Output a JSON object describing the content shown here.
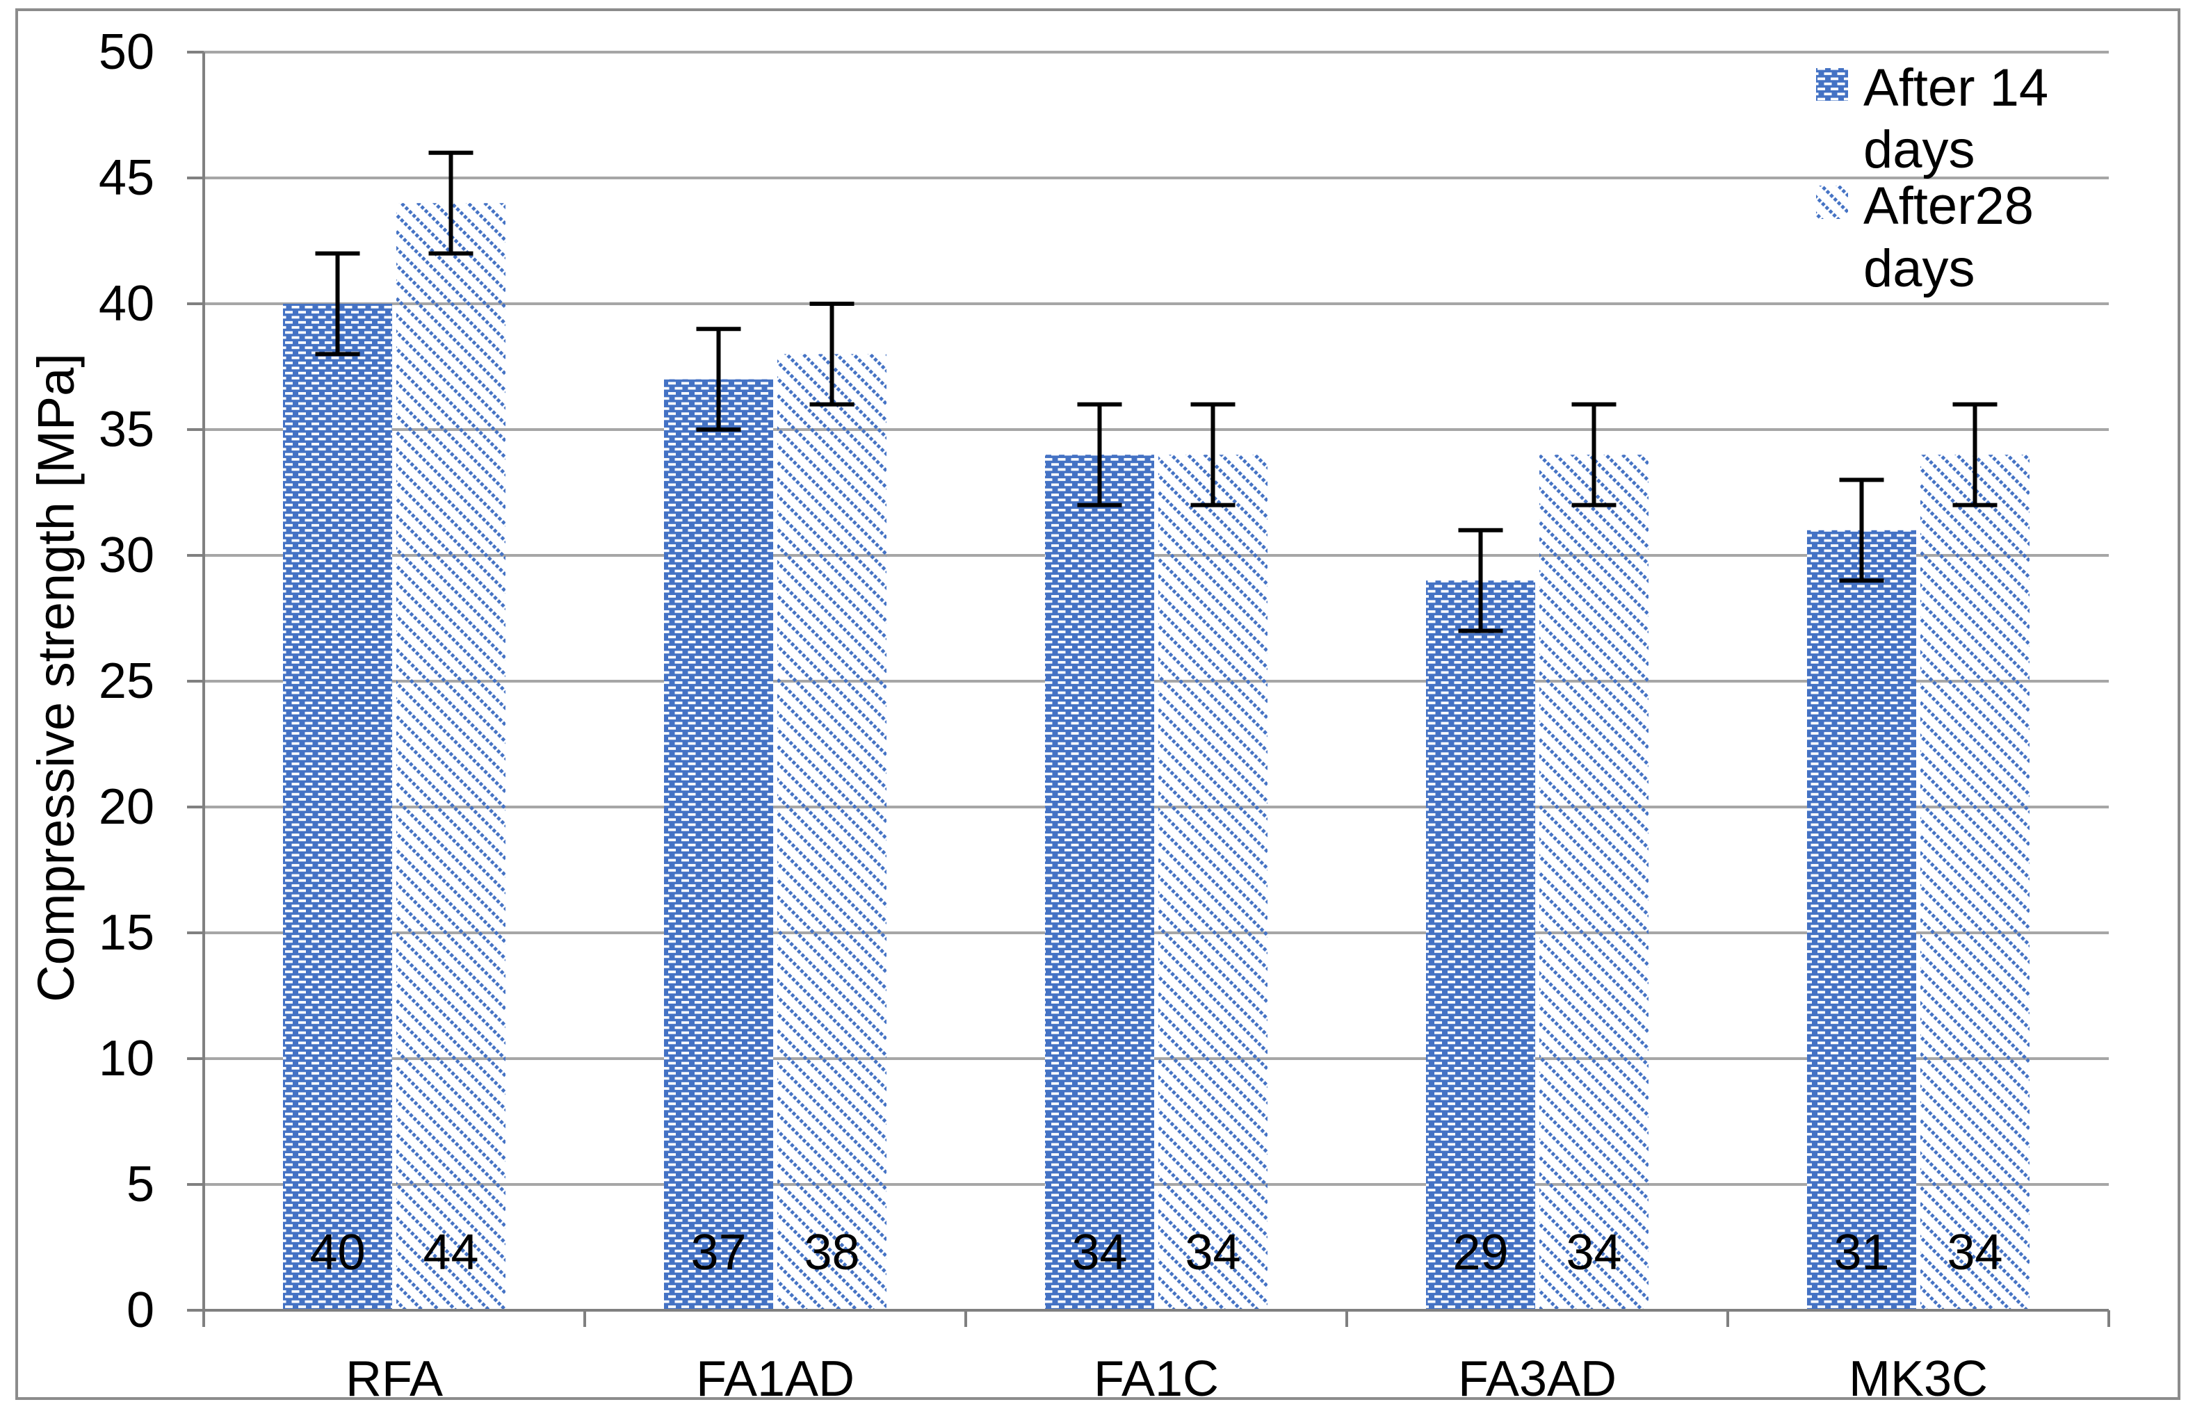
{
  "chart_data": {
    "type": "bar",
    "title": "",
    "xlabel": "",
    "ylabel": "Compressive strength [MPa]",
    "categories": [
      "RFA",
      "FA1AD",
      "FA1C",
      "FA3AD",
      "MK3C"
    ],
    "series": [
      {
        "name": "After 14 days",
        "legend_lines": [
          "After 14",
          "days"
        ],
        "values": [
          40,
          37,
          34,
          29,
          31
        ],
        "data_labels": [
          "40",
          "37",
          "34",
          "29",
          "31"
        ],
        "error_plus_minus": 2,
        "pattern": "blue-brick-dashes"
      },
      {
        "name": "After28 days",
        "legend_lines": [
          "After28",
          "days"
        ],
        "values": [
          44,
          38,
          34,
          34,
          34
        ],
        "data_labels": [
          "44",
          "38",
          "34",
          "34",
          "34"
        ],
        "error_plus_minus": 2,
        "pattern": "blue-diagonal-dots"
      }
    ],
    "ylim": [
      0,
      50
    ],
    "ytick_step": 5,
    "ytick_labels": [
      "0",
      "5",
      "10",
      "15",
      "20",
      "25",
      "30",
      "35",
      "40",
      "45",
      "50"
    ],
    "grid": true,
    "legend_position": "top-right",
    "colors": {
      "bar_blue": "#4472C4",
      "pattern_background": "#FFFFFF",
      "gridline": "#A6A6A6",
      "axis": "#808080",
      "error_bar": "#000000",
      "text": "#000000",
      "chart_border": "#8C8C8C",
      "background": "#FFFFFF"
    }
  }
}
